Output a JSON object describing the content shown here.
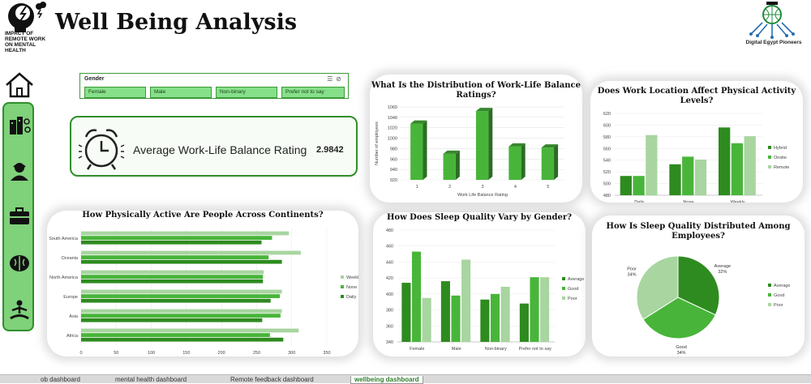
{
  "header": {
    "title": "Well Being Analysis",
    "logo_left_text": "IMPACT OF REMOTE WORK ON MENTAL HEALTH",
    "logo_right_text": "Digital Egypt Pioneers"
  },
  "slicer": {
    "title": "Gender",
    "options": [
      "Female",
      "Male",
      "Non-binary",
      "Prefer not to say"
    ]
  },
  "kpi": {
    "label": "Average Work-Life Balance Rating",
    "value": "2.9842"
  },
  "sidebar": {
    "items": [
      "home-icon",
      "buildings-icon",
      "person-icon",
      "briefcase-icon",
      "brain-icon",
      "meditation-icon"
    ]
  },
  "tabs": {
    "items": [
      "ob dashboard",
      "mental health dashboard",
      "Remote feedback dashboard",
      "wellbeing dashboard"
    ],
    "active": "wellbeing dashboard"
  },
  "colors": {
    "dark": "#2e8b1f",
    "mid": "#48b53a",
    "light": "#a8d5a0",
    "accent_border": "#2f8f2a"
  },
  "chart_data": [
    {
      "type": "bar",
      "title": "What Is the Distribution of Work-Life Balance Ratings?",
      "xlabel": "Work Life Balance Rating",
      "ylabel": "Number of employees",
      "categories": [
        "1",
        "2",
        "3",
        "4",
        "5"
      ],
      "values": [
        1028,
        970,
        1052,
        984,
        982
      ],
      "ylim": [
        920,
        1060
      ],
      "yticks": [
        "920",
        "940",
        "960",
        "980",
        "1000",
        "1020",
        "1040",
        "1060"
      ]
    },
    {
      "type": "bar",
      "title": "Does Work Location Affect Physical Activity Levels?",
      "categories": [
        "Daily",
        "None",
        "Weekly"
      ],
      "series": [
        {
          "name": "Hybrid",
          "values": [
            513,
            533,
            596
          ]
        },
        {
          "name": "Onsite",
          "values": [
            513,
            546,
            569
          ]
        },
        {
          "name": "Remote",
          "values": [
            583,
            541,
            581
          ]
        }
      ],
      "ylim": [
        480,
        620
      ],
      "yticks": [
        "480",
        "500",
        "520",
        "540",
        "560",
        "580",
        "600",
        "620"
      ]
    },
    {
      "type": "bar",
      "title": "How Physically Active Are People Across Continents?",
      "orientation": "horizontal",
      "categories": [
        "South America",
        "Oceania",
        "North America",
        "Europe",
        "Asia",
        "Africa"
      ],
      "series": [
        {
          "name": "Weekly",
          "values": [
            296,
            313,
            260,
            286,
            286,
            310
          ]
        },
        {
          "name": "None",
          "values": [
            272,
            267,
            259,
            283,
            284,
            269
          ]
        },
        {
          "name": "Daily",
          "values": [
            257,
            286,
            259,
            270,
            258,
            288
          ]
        }
      ],
      "xlim": [
        0,
        350
      ],
      "xticks": [
        "0",
        "50",
        "100",
        "150",
        "200",
        "250",
        "300",
        "350"
      ]
    },
    {
      "type": "bar",
      "title": "How Does Sleep Quality Vary by Gender?",
      "categories": [
        "Female",
        "Male",
        "Non-binary",
        "Prefer not to say"
      ],
      "series": [
        {
          "name": "Average",
          "values": [
            414,
            416,
            393,
            388
          ]
        },
        {
          "name": "Good",
          "values": [
            453,
            398,
            400,
            421
          ]
        },
        {
          "name": "Poor",
          "values": [
            395,
            443,
            409,
            421
          ]
        }
      ],
      "ylim": [
        340,
        480
      ],
      "yticks": [
        "340",
        "360",
        "380",
        "400",
        "420",
        "440",
        "460",
        "480"
      ]
    },
    {
      "type": "pie",
      "title": "How Is Sleep Quality Distributed Among Employees?",
      "categories": [
        "Average",
        "Good",
        "Poor"
      ],
      "values": [
        32,
        34,
        34
      ],
      "labels": [
        "Average\n32%",
        "Good\n34%",
        "Poor\n34%"
      ]
    }
  ]
}
